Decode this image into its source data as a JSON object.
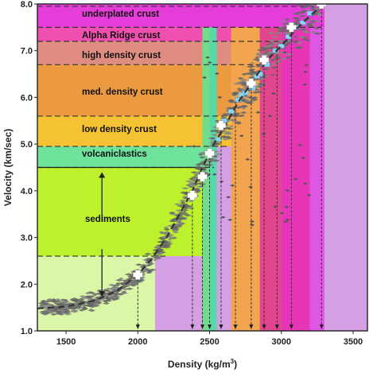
{
  "chart_data": {
    "type": "scatter",
    "xlabel_main": "Density (kg/m",
    "xlabel_sup": "3",
    "xlabel_end": ")",
    "ylabel": "Velocity (km/sec)",
    "xlim": [
      1300,
      3600
    ],
    "ylim": [
      1.0,
      8.0
    ],
    "xticks": [
      "1500",
      "2000",
      "2500",
      "3000",
      "3500"
    ],
    "xtick_values": [
      1500,
      2000,
      2500,
      3000,
      3500
    ],
    "yticks": [
      "1.0",
      "2.0",
      "3.0",
      "4.0",
      "5.0",
      "6.0",
      "7.0",
      "8.0"
    ],
    "ytick_values": [
      1.0,
      2.0,
      3.0,
      4.0,
      5.0,
      6.0,
      7.0,
      8.0
    ],
    "zones": [
      {
        "label": "underplated crust",
        "vmin": 7.5,
        "vmax": 8.0,
        "density_edge": 3300,
        "color": "#e63cd9"
      },
      {
        "label": "Alpha Ridge crust",
        "vmin": 7.2,
        "vmax": 7.5,
        "density_edge": 3200,
        "color": "#ef4fae"
      },
      {
        "label": "high density crust",
        "vmin": 6.7,
        "vmax": 7.2,
        "density_edge": 3000,
        "color": "#df8d80"
      },
      {
        "label": "med. density crust",
        "vmin": 5.6,
        "vmax": 6.7,
        "density_edge": 2850,
        "color": "#ec9a3f"
      },
      {
        "label": "low density crust",
        "vmin": 4.95,
        "vmax": 5.6,
        "density_edge": 2650,
        "color": "#f4c232"
      },
      {
        "label": "volcaniclastics",
        "vmin": 4.5,
        "vmax": 4.95,
        "density_edge": 2550,
        "color": "#6ee39c"
      },
      {
        "label": "sediments",
        "vmin": 2.6,
        "vmax": 4.5,
        "density_edge": 2450,
        "color": "#bdf02d"
      },
      {
        "label": "",
        "vmin": 1.0,
        "vmax": 2.6,
        "density_edge": 2120,
        "color": "#d9f7a6"
      }
    ],
    "column_fills": [
      {
        "x_from": 2450,
        "x_to": 2500,
        "color": "#73dc8a"
      },
      {
        "x_from": 2500,
        "x_to": 2550,
        "color": "#56d8a8"
      },
      {
        "x_from": 2650,
        "x_to": 2850,
        "color": "#f3a44e"
      },
      {
        "x_from": 2850,
        "x_to": 3000,
        "color": "#e0458e"
      },
      {
        "x_from": 3000,
        "x_to": 3200,
        "color": "#e735b8"
      },
      {
        "x_from": 3200,
        "x_to": 3300,
        "color": "#e056e4"
      },
      {
        "x_from": 3300,
        "x_to": 3600,
        "color": "#d083e0"
      }
    ],
    "lookup_lines": [
      {
        "x": 2000,
        "v": 2.2
      },
      {
        "x": 2380,
        "v": 3.9
      },
      {
        "x": 2450,
        "v": 4.3
      },
      {
        "x": 2500,
        "v": 4.8
      },
      {
        "x": 2580,
        "v": 5.4
      },
      {
        "x": 2680,
        "v": 5.9
      },
      {
        "x": 2790,
        "v": 6.3
      },
      {
        "x": 2880,
        "v": 6.8
      },
      {
        "x": 2970,
        "v": 7.1
      },
      {
        "x": 3070,
        "v": 7.5
      },
      {
        "x": 3280,
        "v": 8.0
      }
    ],
    "trend_curve": {
      "x": [
        1300,
        1500,
        1700,
        1850,
        2000,
        2100,
        2200,
        2300,
        2380,
        2450,
        2520,
        2600,
        2700,
        2800,
        2900,
        3000,
        3100,
        3200,
        3300
      ],
      "y": [
        1.48,
        1.52,
        1.65,
        1.85,
        2.2,
        2.55,
        3.0,
        3.55,
        4.0,
        4.5,
        4.95,
        5.35,
        5.9,
        6.35,
        6.8,
        7.1,
        7.45,
        7.75,
        8.0
      ]
    },
    "white_crosses": [
      {
        "x": 2000,
        "y": 2.2
      },
      {
        "x": 2380,
        "y": 3.9
      },
      {
        "x": 2450,
        "y": 4.3
      },
      {
        "x": 2500,
        "y": 4.8
      },
      {
        "x": 2580,
        "y": 5.4
      },
      {
        "x": 2790,
        "y": 6.3
      },
      {
        "x": 2880,
        "y": 6.8
      },
      {
        "x": 3070,
        "y": 7.5
      },
      {
        "x": 3280,
        "y": 8.0
      }
    ],
    "blue_points": [
      {
        "x": 2650,
        "y": 5.7
      },
      {
        "x": 2700,
        "y": 5.95
      },
      {
        "x": 2750,
        "y": 6.1
      },
      {
        "x": 2800,
        "y": 6.2
      },
      {
        "x": 2830,
        "y": 6.45
      },
      {
        "x": 2900,
        "y": 6.7
      },
      {
        "x": 2960,
        "y": 7.0
      },
      {
        "x": 3000,
        "y": 7.1
      },
      {
        "x": 3050,
        "y": 7.3
      },
      {
        "x": 3100,
        "y": 7.5
      },
      {
        "x": 3150,
        "y": 7.6
      },
      {
        "x": 3200,
        "y": 7.8
      },
      {
        "x": 2600,
        "y": 5.5
      },
      {
        "x": 2560,
        "y": 5.1
      },
      {
        "x": 2720,
        "y": 6.05
      },
      {
        "x": 2850,
        "y": 6.5
      }
    ],
    "sediments_arrow": {
      "x": 1750,
      "y_top": 4.5,
      "y_bottom": 1.7
    }
  }
}
